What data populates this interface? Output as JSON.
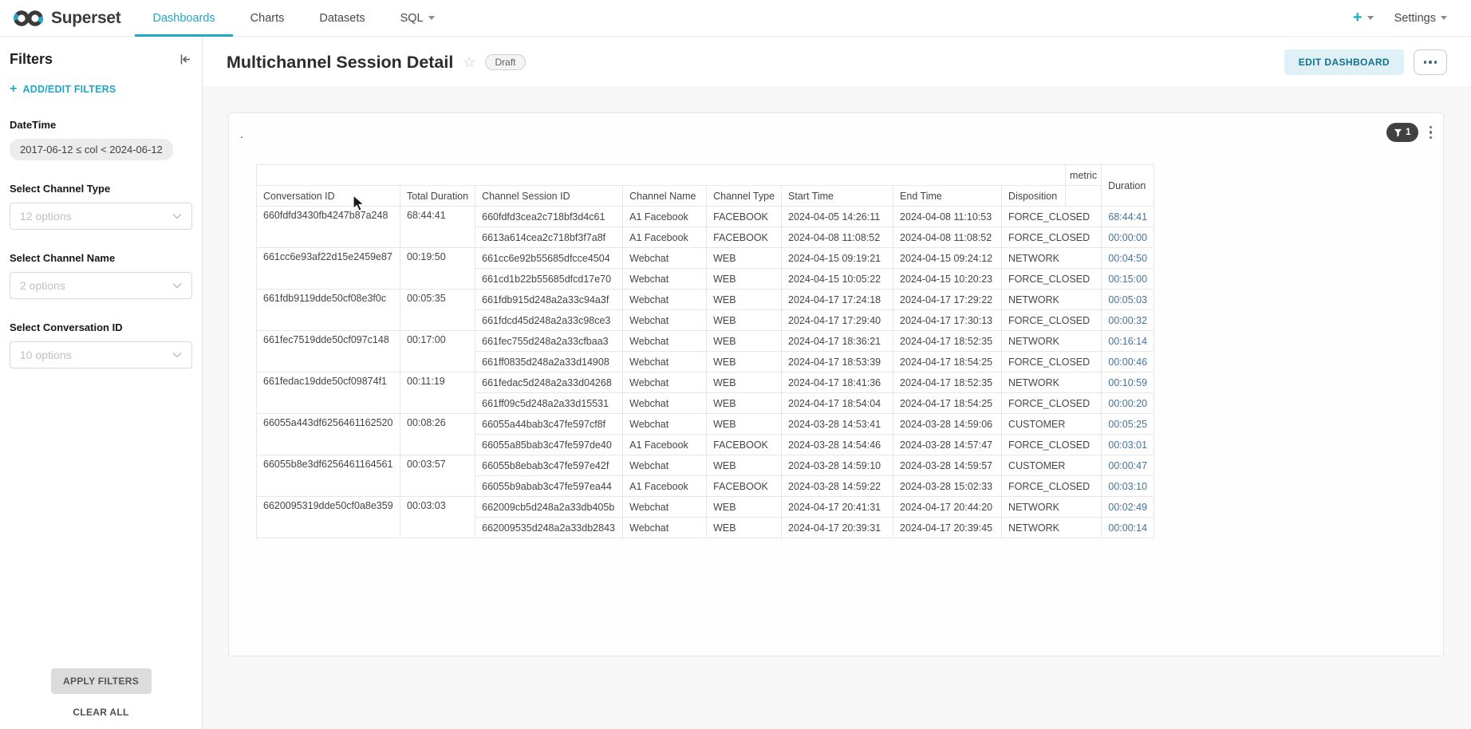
{
  "navbar": {
    "brand": "Superset",
    "tabs": [
      {
        "label": "Dashboards",
        "active": true
      },
      {
        "label": "Charts",
        "active": false
      },
      {
        "label": "Datasets",
        "active": false
      },
      {
        "label": "SQL",
        "active": false,
        "has_caret": true
      }
    ],
    "plus_label": "+",
    "settings_label": "Settings"
  },
  "filters_panel": {
    "title": "Filters",
    "collapse_icon": "collapse-left",
    "add_edit_label": "ADD/EDIT FILTERS",
    "groups": [
      {
        "label": "DateTime",
        "type": "pill",
        "value": "2017-06-12 ≤ col < 2024-06-12"
      },
      {
        "label": "Select Channel Type",
        "type": "select",
        "placeholder": "12 options"
      },
      {
        "label": "Select Channel Name",
        "type": "select",
        "placeholder": "2 options"
      },
      {
        "label": "Select Conversation ID",
        "type": "select",
        "placeholder": "10 options"
      }
    ],
    "apply_label": "APPLY FILTERS",
    "clear_label": "CLEAR ALL"
  },
  "header": {
    "title": "Multichannel Session Detail",
    "star_icon": "star-outline",
    "status_badge": "Draft",
    "edit_button": "EDIT DASHBOARD",
    "more_menu_icon": "ellipsis"
  },
  "card": {
    "chart_title": ".",
    "filter_count": "1",
    "filter_icon": "funnel",
    "menu_icon": "kebab-vertical"
  },
  "table": {
    "columns": [
      "Conversation ID",
      "Total Duration",
      "Channel Session ID",
      "Channel Name",
      "Channel Type",
      "Start Time",
      "End Time",
      "Disposition"
    ],
    "metric_label": "metric",
    "metric_name": "Duration",
    "groups": [
      {
        "conversation_id": "660fdfd3430fb4247b87a248",
        "total_duration": "68:44:41",
        "sessions": [
          {
            "session_id": "660fdfd3cea2c718bf3d4c61",
            "channel_name": "A1 Facebook",
            "channel_type": "FACEBOOK",
            "start": "2024-04-05 14:26:11",
            "end": "2024-04-08 11:10:53",
            "disposition": "FORCE_CLOSED",
            "duration": "68:44:41"
          },
          {
            "session_id": "6613a614cea2c718bf3f7a8f",
            "channel_name": "A1 Facebook",
            "channel_type": "FACEBOOK",
            "start": "2024-04-08 11:08:52",
            "end": "2024-04-08 11:08:52",
            "disposition": "FORCE_CLOSED",
            "duration": "00:00:00"
          }
        ]
      },
      {
        "conversation_id": "661cc6e93af22d15e2459e87",
        "total_duration": "00:19:50",
        "sessions": [
          {
            "session_id": "661cc6e92b55685dfcce4504",
            "channel_name": "Webchat",
            "channel_type": "WEB",
            "start": "2024-04-15 09:19:21",
            "end": "2024-04-15 09:24:12",
            "disposition": "NETWORK",
            "duration": "00:04:50"
          },
          {
            "session_id": "661cd1b22b55685dfcd17e70",
            "channel_name": "Webchat",
            "channel_type": "WEB",
            "start": "2024-04-15 10:05:22",
            "end": "2024-04-15 10:20:23",
            "disposition": "FORCE_CLOSED",
            "duration": "00:15:00"
          }
        ]
      },
      {
        "conversation_id": "661fdb9119dde50cf08e3f0c",
        "total_duration": "00:05:35",
        "sessions": [
          {
            "session_id": "661fdb915d248a2a33c94a3f",
            "channel_name": "Webchat",
            "channel_type": "WEB",
            "start": "2024-04-17 17:24:18",
            "end": "2024-04-17 17:29:22",
            "disposition": "NETWORK",
            "duration": "00:05:03"
          },
          {
            "session_id": "661fdcd45d248a2a33c98ce3",
            "channel_name": "Webchat",
            "channel_type": "WEB",
            "start": "2024-04-17 17:29:40",
            "end": "2024-04-17 17:30:13",
            "disposition": "FORCE_CLOSED",
            "duration": "00:00:32"
          }
        ]
      },
      {
        "conversation_id": "661fec7519dde50cf097c148",
        "total_duration": "00:17:00",
        "sessions": [
          {
            "session_id": "661fec755d248a2a33cfbaa3",
            "channel_name": "Webchat",
            "channel_type": "WEB",
            "start": "2024-04-17 18:36:21",
            "end": "2024-04-17 18:52:35",
            "disposition": "NETWORK",
            "duration": "00:16:14"
          },
          {
            "session_id": "661ff0835d248a2a33d14908",
            "channel_name": "Webchat",
            "channel_type": "WEB",
            "start": "2024-04-17 18:53:39",
            "end": "2024-04-17 18:54:25",
            "disposition": "FORCE_CLOSED",
            "duration": "00:00:46"
          }
        ]
      },
      {
        "conversation_id": "661fedac19dde50cf09874f1",
        "total_duration": "00:11:19",
        "sessions": [
          {
            "session_id": "661fedac5d248a2a33d04268",
            "channel_name": "Webchat",
            "channel_type": "WEB",
            "start": "2024-04-17 18:41:36",
            "end": "2024-04-17 18:52:35",
            "disposition": "NETWORK",
            "duration": "00:10:59"
          },
          {
            "session_id": "661ff09c5d248a2a33d15531",
            "channel_name": "Webchat",
            "channel_type": "WEB",
            "start": "2024-04-17 18:54:04",
            "end": "2024-04-17 18:54:25",
            "disposition": "FORCE_CLOSED",
            "duration": "00:00:20"
          }
        ]
      },
      {
        "conversation_id": "66055a443df6256461162520",
        "total_duration": "00:08:26",
        "sessions": [
          {
            "session_id": "66055a44bab3c47fe597cf8f",
            "channel_name": "Webchat",
            "channel_type": "WEB",
            "start": "2024-03-28 14:53:41",
            "end": "2024-03-28 14:59:06",
            "disposition": "CUSTOMER",
            "duration": "00:05:25"
          },
          {
            "session_id": "66055a85bab3c47fe597de40",
            "channel_name": "A1 Facebook",
            "channel_type": "FACEBOOK",
            "start": "2024-03-28 14:54:46",
            "end": "2024-03-28 14:57:47",
            "disposition": "FORCE_CLOSED",
            "duration": "00:03:01"
          }
        ]
      },
      {
        "conversation_id": "66055b8e3df6256461164561",
        "total_duration": "00:03:57",
        "sessions": [
          {
            "session_id": "66055b8ebab3c47fe597e42f",
            "channel_name": "Webchat",
            "channel_type": "WEB",
            "start": "2024-03-28 14:59:10",
            "end": "2024-03-28 14:59:57",
            "disposition": "CUSTOMER",
            "duration": "00:00:47"
          },
          {
            "session_id": "66055b9abab3c47fe597ea44",
            "channel_name": "A1 Facebook",
            "channel_type": "FACEBOOK",
            "start": "2024-03-28 14:59:22",
            "end": "2024-03-28 15:02:33",
            "disposition": "FORCE_CLOSED",
            "duration": "00:03:10"
          }
        ]
      },
      {
        "conversation_id": "6620095319dde50cf0a8e359",
        "total_duration": "00:03:03",
        "sessions": [
          {
            "session_id": "662009cb5d248a2a33db405b",
            "channel_name": "Webchat",
            "channel_type": "WEB",
            "start": "2024-04-17 20:41:31",
            "end": "2024-04-17 20:44:20",
            "disposition": "NETWORK",
            "duration": "00:02:49"
          },
          {
            "session_id": "662009535d248a2a33db2843",
            "channel_name": "Webchat",
            "channel_type": "WEB",
            "start": "2024-04-17 20:39:31",
            "end": "2024-04-17 20:39:45",
            "disposition": "NETWORK",
            "duration": "00:00:14"
          }
        ]
      }
    ]
  },
  "colors": {
    "accent": "#20A7C9",
    "duration_text": "#44739e",
    "badge_bg": "#414141"
  }
}
